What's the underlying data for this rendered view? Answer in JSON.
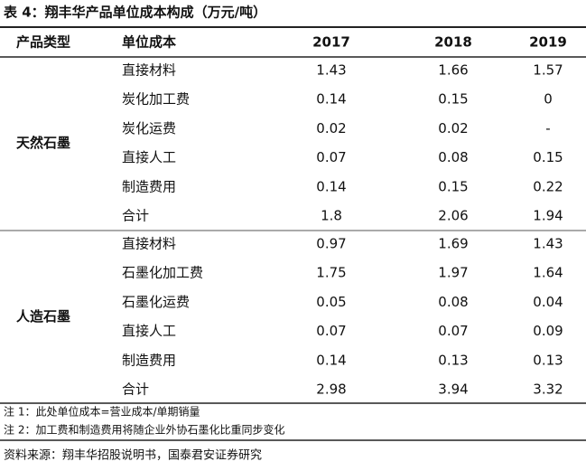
{
  "title": "表 4：翔丰华产品单位成本构成（万元/吨）",
  "table": {
    "header": [
      "产品类型",
      "单位成本",
      "2017",
      "2018",
      "2019"
    ],
    "groups": [
      {
        "label": "天然石墨",
        "rows": [
          [
            "直接材料",
            "1.43",
            "1.66",
            "1.57"
          ],
          [
            "炭化加工费",
            "0.14",
            "0.15",
            "0"
          ],
          [
            "炭化运费",
            "0.02",
            "0.02",
            "-"
          ],
          [
            "直接人工",
            "0.07",
            "0.08",
            "0.15"
          ],
          [
            "制造费用",
            "0.14",
            "0.15",
            "0.22"
          ],
          [
            "合计",
            "1.8",
            "2.06",
            "1.94"
          ]
        ]
      },
      {
        "label": "人造石墨",
        "rows": [
          [
            "直接材料",
            "0.97",
            "1.69",
            "1.43"
          ],
          [
            "石墨化加工费",
            "1.75",
            "1.97",
            "1.64"
          ],
          [
            "石墨化运费",
            "0.05",
            "0.08",
            "0.04"
          ],
          [
            "直接人工",
            "0.07",
            "0.07",
            "0.09"
          ],
          [
            "制造费用",
            "0.14",
            "0.13",
            "0.13"
          ],
          [
            "合计",
            "2.98",
            "3.94",
            "3.32"
          ]
        ]
      }
    ]
  },
  "notes": [
    "注 1：此处单位成本=营业成本/单期销量",
    "注 2：加工费和制造费用将随企业外协石墨化比重同步变化"
  ],
  "source": "资料来源：翔丰华招股说明书，国泰君安证券研究"
}
